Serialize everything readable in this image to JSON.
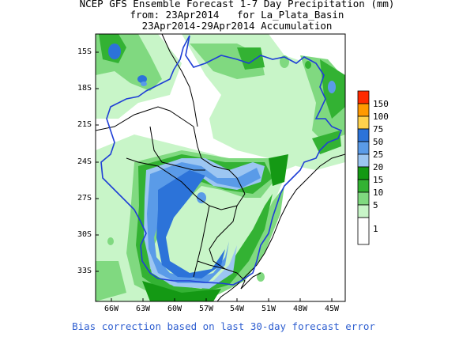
{
  "title": {
    "line1": "NCEP GFS Ensemble Forecast 1-7 Day Precipitation (mm)",
    "line2": "from: 23Apr2014   for La_Plata_Basin",
    "line3": "23Apr2014-29Apr2014 Accumulation"
  },
  "footer": "Bias correction based on last 30-day forecast error",
  "axes": {
    "y_ticks": [
      "15S",
      "18S",
      "21S",
      "24S",
      "27S",
      "30S",
      "33S"
    ],
    "x_ticks": [
      "66W",
      "63W",
      "60W",
      "57W",
      "54W",
      "51W",
      "48W",
      "45W"
    ]
  },
  "legend": {
    "labels": [
      "150",
      "100",
      "75",
      "50",
      "25",
      "20",
      "15",
      "10",
      "5",
      "1"
    ],
    "colors": [
      "#ff2a00",
      "#ff9900",
      "#ffd24d",
      "#2c73d9",
      "#5a9be8",
      "#9cc6f2",
      "#149914",
      "#33b233",
      "#80d980",
      "#c8f5c8",
      "#ffffff"
    ]
  }
}
